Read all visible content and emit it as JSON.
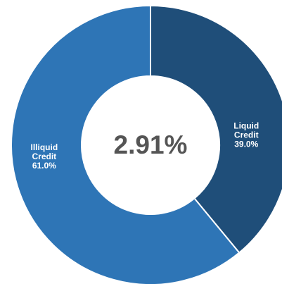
{
  "chart_data": {
    "type": "pie",
    "variant": "donut",
    "center_label": "2.91%",
    "slices": [
      {
        "label_lines": [
          "Liquid",
          "Credit",
          "39.0%"
        ],
        "name": "Liquid Credit",
        "value": 39.0,
        "color": "#1f4e79"
      },
      {
        "label_lines": [
          "Illiquid",
          "Credit",
          "61.0%"
        ],
        "name": "Illiquid Credit",
        "value": 61.0,
        "color": "#2e75b6"
      }
    ],
    "start_angle_deg": 0,
    "direction": "clockwise",
    "separator_color": "#ffffff",
    "background_color": "#ffffff"
  }
}
